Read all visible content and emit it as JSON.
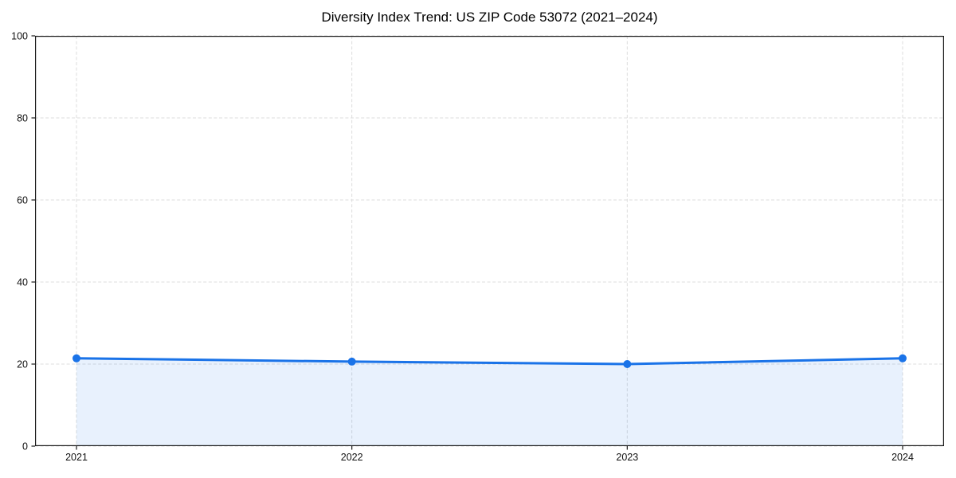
{
  "page": {
    "background": "#ffffff"
  },
  "chart_data": {
    "type": "area",
    "title": "Diversity Index Trend: US ZIP Code 53072 (2021–2024)",
    "x": [
      "2021",
      "2022",
      "2023",
      "2024"
    ],
    "series": [
      {
        "name": "Diversity Index",
        "values": [
          21.4,
          20.6,
          20.0,
          21.4
        ]
      }
    ],
    "xlabel": "",
    "ylabel": "",
    "ylim": [
      0,
      100
    ],
    "yticks": [
      0,
      20,
      40,
      60,
      80,
      100
    ],
    "grid": true,
    "grid_style": "dashed",
    "legend_position": "none",
    "colors": {
      "line": "#1a73e8",
      "marker": "#1a73e8",
      "fill": "rgba(26,115,232,0.10)",
      "grid": "#dddddd",
      "spine": "#1a1a1a",
      "tick_label": "#111111",
      "title": "#000000"
    }
  }
}
